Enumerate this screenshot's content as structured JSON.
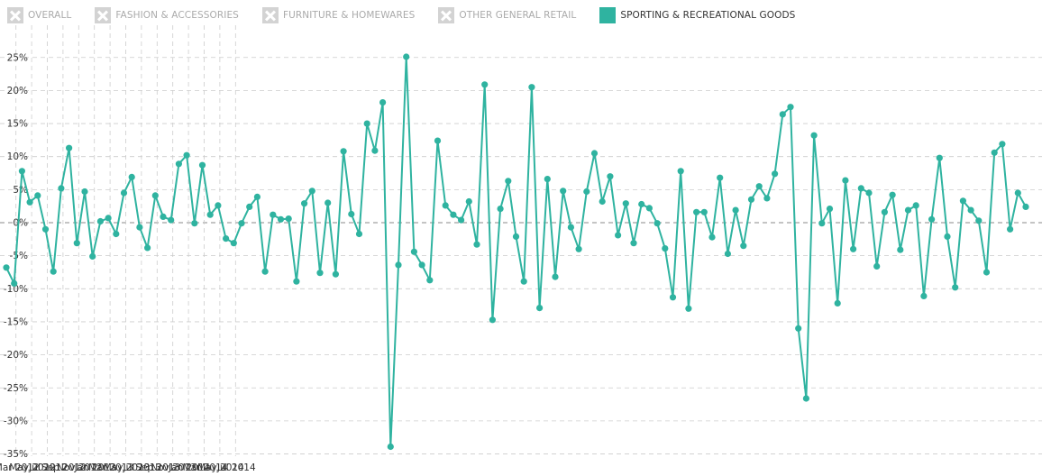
{
  "legend": {
    "items": [
      {
        "label": "OVERALL",
        "active": false
      },
      {
        "label": "FASHION & ACCESSORIES",
        "active": false
      },
      {
        "label": "FURNITURE & HOMEWARES",
        "active": false
      },
      {
        "label": "OTHER GENERAL RETAIL",
        "active": false
      },
      {
        "label": "SPORTING & RECREATIONAL GOODS",
        "active": true
      }
    ]
  },
  "colors": {
    "series": "#2fb3a0",
    "inactive_box": "#d3d3d3",
    "inactive_text": "#aaaaaa",
    "active_text": "#333333",
    "grid": "#cccccc",
    "axis_text": "#333333"
  },
  "chart_data": {
    "type": "line",
    "title": "",
    "xlabel": "",
    "ylabel": "",
    "ylim": [
      -35,
      25
    ],
    "ytick_labels": [
      "25%",
      "20%",
      "15%",
      "10%",
      "5%",
      "0%",
      "-5%",
      "-10%",
      "-15%",
      "-20%",
      "-25%",
      "-30%",
      "-35%"
    ],
    "xtick_labels": [
      "Mar 2012",
      "May 2012",
      "Jul 2012",
      "Sep 2012",
      "Nov 2012",
      "Jan 2013",
      "Mar 2013",
      "May 2013",
      "Jul 2013",
      "Sep 2013",
      "Nov 2013",
      "Jan 2014",
      "Mar 2014",
      "May 2014",
      "Jul 2014"
    ],
    "grid": true,
    "legend_position": "top-left",
    "series": [
      {
        "name": "SPORTING & RECREATIONAL GOODS",
        "values": [
          -6.8,
          -9.2,
          7.8,
          3.1,
          4.1,
          -1.0,
          -7.4,
          5.2,
          11.3,
          -3.1,
          4.7,
          -5.1,
          0.2,
          0.7,
          -1.7,
          4.5,
          6.9,
          -0.7,
          -3.8,
          4.1,
          0.9,
          0.4,
          8.9,
          10.2,
          -0.1,
          8.7,
          1.2,
          2.6,
          -2.4,
          -3.1,
          -0.1,
          2.4,
          3.9,
          -7.4,
          1.2,
          0.5,
          0.6,
          -8.9,
          2.9,
          4.8,
          -7.6,
          3.0,
          -7.8,
          10.8,
          1.3,
          -1.7,
          15.0,
          10.9,
          18.2,
          -33.9,
          -6.4,
          25.1,
          -4.4,
          -6.4,
          -8.7,
          12.4,
          2.6,
          1.2,
          0.4,
          3.2,
          -3.3,
          20.9,
          -14.7,
          2.1,
          6.3,
          -2.1,
          -8.9,
          20.5,
          -12.9,
          6.6,
          -8.2,
          4.8,
          -0.7,
          -4.0,
          4.7,
          10.5,
          3.2,
          7.0,
          -1.9,
          2.9,
          -3.1,
          2.8,
          2.2,
          -0.1,
          -3.9,
          -11.3,
          7.8,
          -13.0,
          1.6,
          1.6,
          -2.2,
          6.8,
          -4.7,
          1.9,
          -3.5,
          3.5,
          5.5,
          3.7,
          7.4,
          16.4,
          17.5,
          -16.0,
          -26.6,
          13.2,
          -0.1,
          2.1,
          -12.2,
          6.4,
          -4.0,
          5.2,
          4.5,
          -6.6,
          1.6,
          4.2,
          -4.1,
          1.9,
          2.6,
          -11.1,
          0.5,
          9.8,
          -2.1,
          -9.8,
          3.3,
          1.9,
          0.3,
          -7.5,
          10.6,
          11.9,
          -1.0,
          4.5,
          2.4
        ]
      }
    ]
  }
}
